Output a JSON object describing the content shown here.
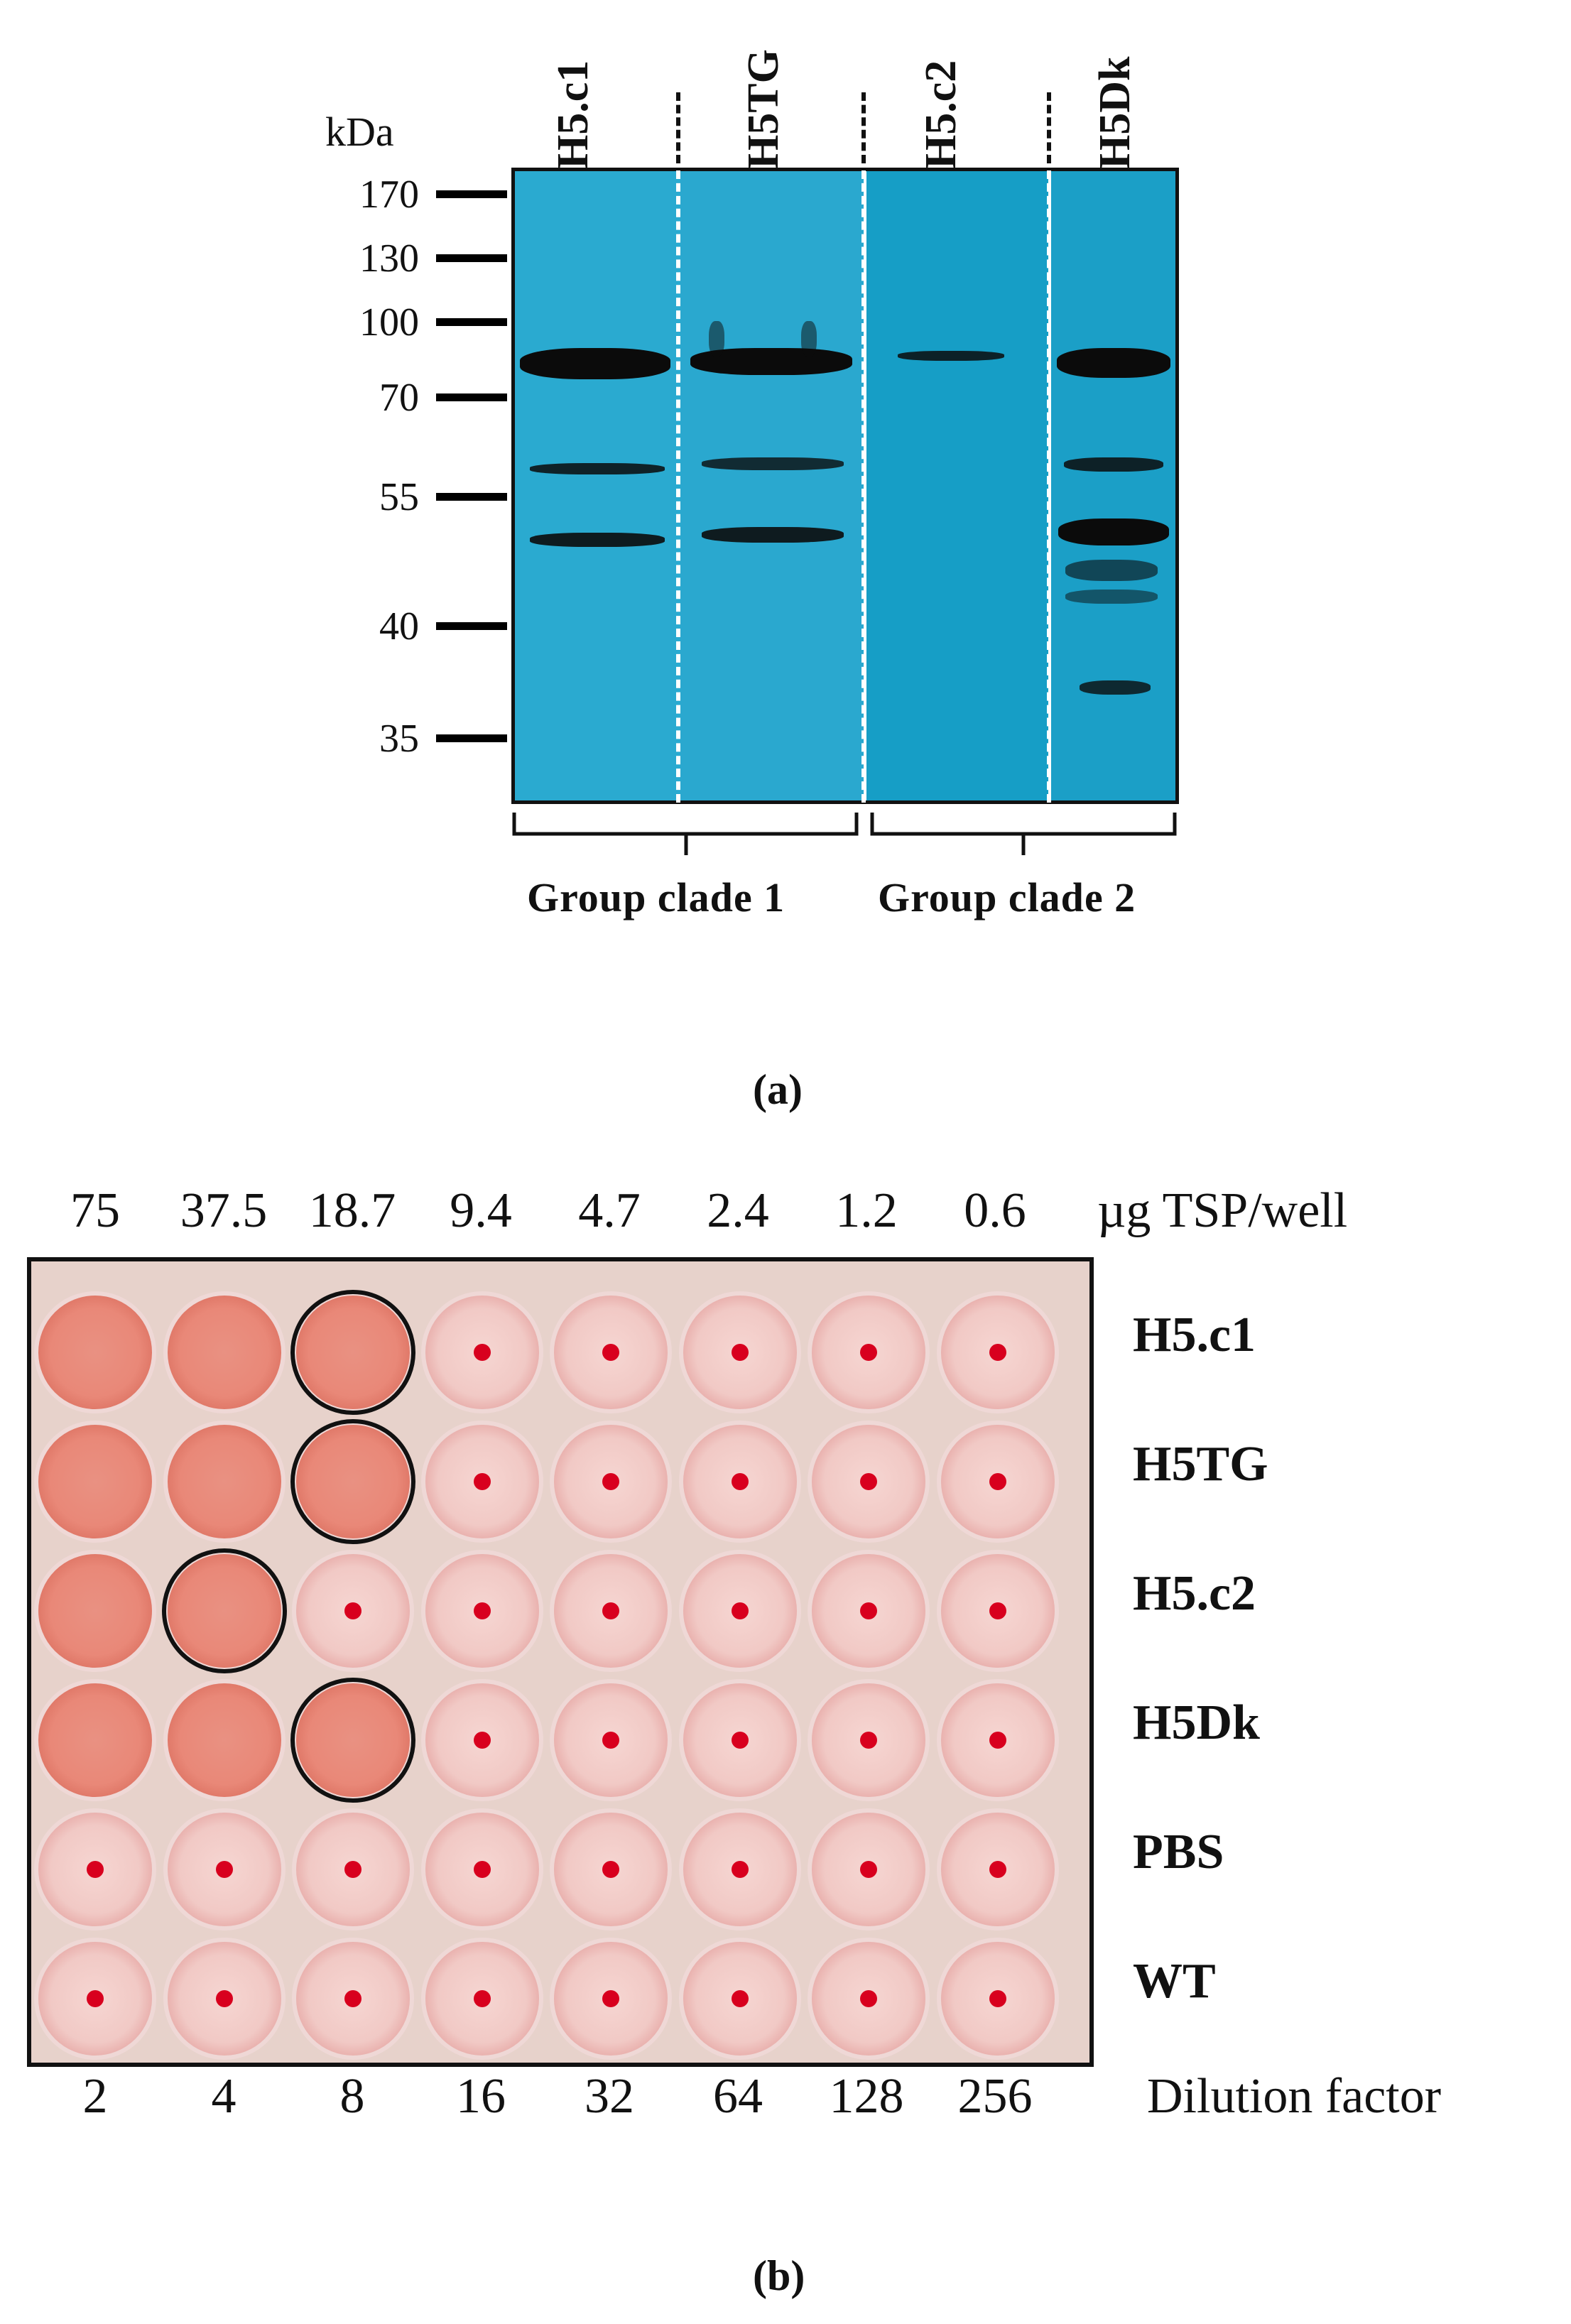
{
  "panel_a": {
    "caption": "(a)",
    "lanes": [
      "H5.c1",
      "H5TG",
      "H5.c2",
      "H5Dk"
    ],
    "mw_unit": "kDa",
    "mw_markers": [
      "170",
      "130",
      "100",
      "70",
      "55",
      "40",
      "35"
    ],
    "groups": [
      "Group clade 1",
      "Group clade 2"
    ],
    "colors": {
      "blot_background": "#2aa9cf",
      "band": "#0b0b0b"
    }
  },
  "panel_b": {
    "caption": "(b)",
    "concentration_unit": "µg TSP/well",
    "concentrations": [
      "75",
      "37.5",
      "18.7",
      "9.4",
      "4.7",
      "2.4",
      "1.2",
      "0.6"
    ],
    "dilution_unit": "Dilution factor",
    "dilutions": [
      "2",
      "4",
      "8",
      "16",
      "32",
      "64",
      "128",
      "256"
    ],
    "rows": [
      "H5.c1",
      "H5TG",
      "H5.c2",
      "H5Dk",
      "PBS",
      "WT"
    ],
    "hemagglutination_wells_positive": [
      3,
      3,
      2,
      3,
      0,
      0
    ],
    "circled_column": [
      3,
      3,
      2,
      3,
      0,
      0
    ],
    "colors": {
      "positive_well": "#e98878",
      "negative_well": "#f1c9c5",
      "button": "#d8001e",
      "plate": "#e7d2cb"
    }
  }
}
